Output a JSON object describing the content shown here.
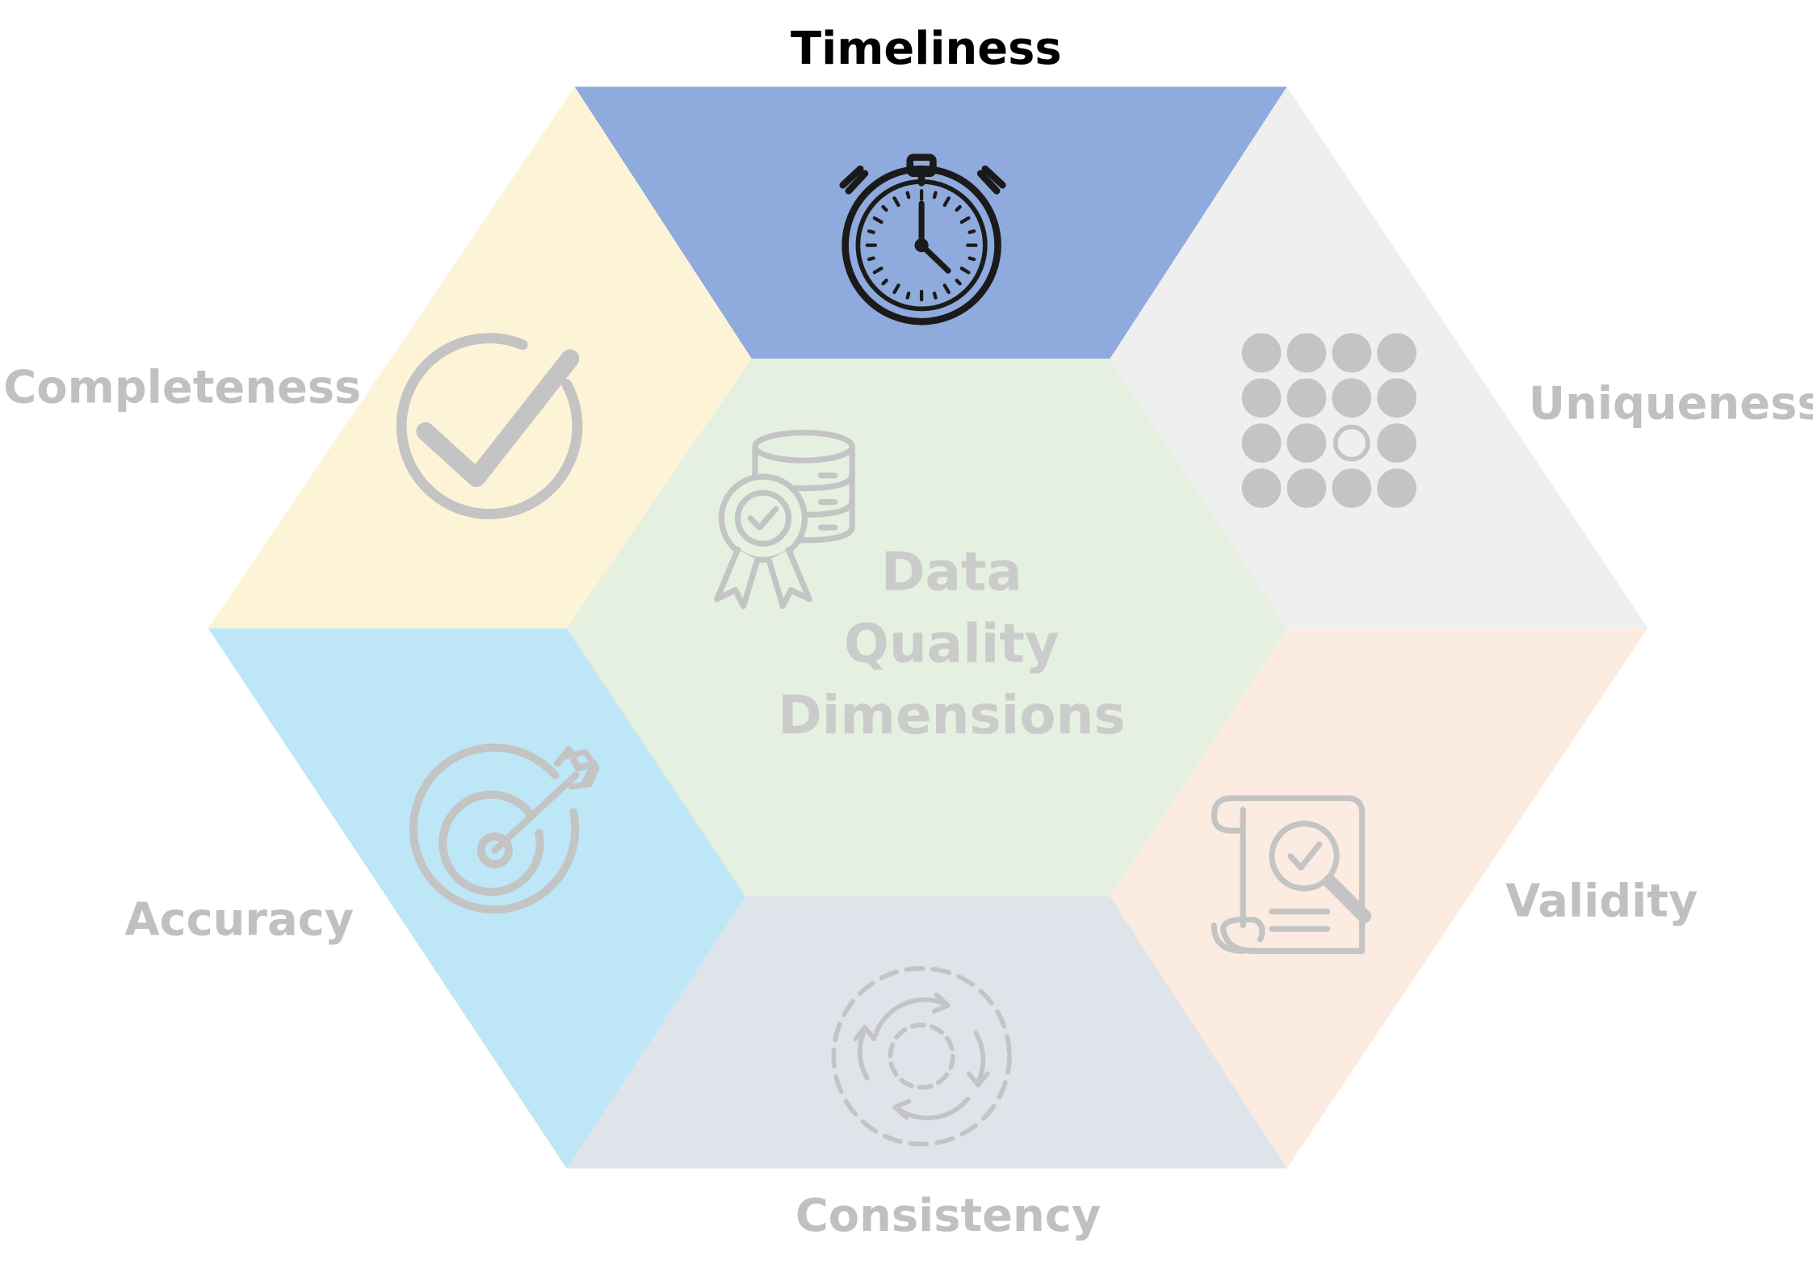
{
  "center": {
    "lines": [
      "Data",
      "Quality",
      "Dimensions"
    ],
    "color": "#cbcbcb",
    "fill": "#e6f0e0",
    "icon": "database-certified-icon"
  },
  "dimensions": {
    "timeliness": {
      "label": "Timeliness",
      "label_color": "#000000",
      "fill": "#8faadc",
      "icon": "stopwatch-icon",
      "active": true
    },
    "uniqueness": {
      "label": "Uniqueness",
      "label_color": "#c0c0c0",
      "fill": "#efefef",
      "icon": "dot-grid-icon",
      "active": false
    },
    "validity": {
      "label": "Validity",
      "label_color": "#c0c0c0",
      "fill": "#fbebe0",
      "icon": "document-check-icon",
      "active": false
    },
    "consistency": {
      "label": "Consistency",
      "label_color": "#c0c0c0",
      "fill": "#dfe3ea",
      "icon": "cycle-arrows-icon",
      "active": false
    },
    "accuracy": {
      "label": "Accuracy",
      "label_color": "#c0c0c0",
      "fill": "#bde7f7",
      "icon": "target-icon",
      "active": false
    },
    "completeness": {
      "label": "Completeness",
      "label_color": "#c0c0c0",
      "fill": "#fdf3d7",
      "icon": "check-circle-icon",
      "active": false
    }
  },
  "colors": {
    "icon_active": "#1a1a1a",
    "icon_faded": "#c4c4c4",
    "background": "#ffffff"
  }
}
